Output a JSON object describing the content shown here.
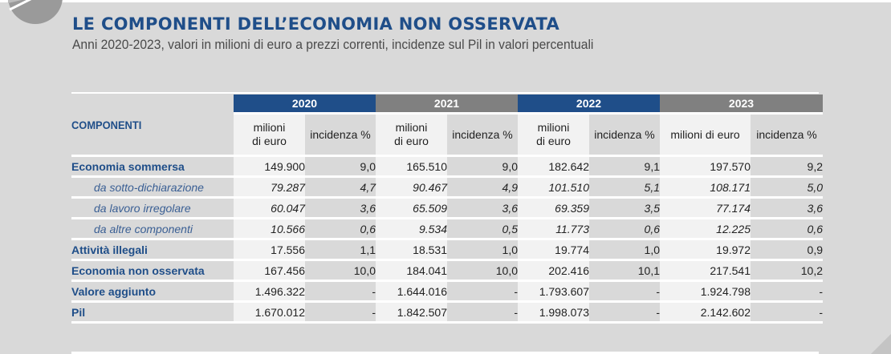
{
  "header": {
    "title": "LE COMPONENTI DELL’ECONOMIA NON OSSERVATA",
    "subtitle": "Anni 2020-2023, valori in milioni di euro a prezzi correnti, incidenze sul Pil in valori percentuali"
  },
  "colors": {
    "accent_blue": "#1f4e89",
    "header_grey": "#808080",
    "background": "#d9d9d9",
    "cell_light": "#f2f2f2"
  },
  "logo_icon": "pie-chart-icon",
  "table": {
    "components_header": "COMPONENTI",
    "years": [
      "2020",
      "2021",
      "2022",
      "2023"
    ],
    "subheaders": {
      "millions": [
        "milioni",
        "di euro"
      ],
      "millions_2023": "milioni di euro",
      "incidence": "incidenza %"
    },
    "rows": [
      {
        "label": "Economia sommersa",
        "style": "bold",
        "values": [
          "149.900",
          "9,0",
          "165.510",
          "9,0",
          "182.642",
          "9,1",
          "197.570",
          "9,2"
        ]
      },
      {
        "label": "da sotto-dichiarazione",
        "style": "italic",
        "values": [
          "79.287",
          "4,7",
          "90.467",
          "4,9",
          "101.510",
          "5,1",
          "108.171",
          "5,0"
        ]
      },
      {
        "label": "da lavoro irregolare",
        "style": "italic",
        "values": [
          "60.047",
          "3,6",
          "65.509",
          "3,6",
          "69.359",
          "3,5",
          "77.174",
          "3,6"
        ]
      },
      {
        "label": "da altre componenti",
        "style": "italic",
        "values": [
          "10.566",
          "0,6",
          "9.534",
          "0,5",
          "11.773",
          "0,6",
          "12.225",
          "0,6"
        ]
      },
      {
        "label": "Attività illegali",
        "style": "bold",
        "values": [
          "17.556",
          "1,1",
          "18.531",
          "1,0",
          "19.774",
          "1,0",
          "19.972",
          "0,9"
        ]
      },
      {
        "label": "Economia non osservata",
        "style": "bold",
        "values": [
          "167.456",
          "10,0",
          "184.041",
          "10,0",
          "202.416",
          "10,1",
          "217.541",
          "10,2"
        ]
      },
      {
        "label": "Valore aggiunto",
        "style": "bold",
        "values": [
          "1.496.322",
          "-",
          "1.644.016",
          "-",
          "1.793.607",
          "-",
          "1.924.798",
          "-"
        ]
      },
      {
        "label": "Pil",
        "style": "bold",
        "values": [
          "1.670.012",
          "-",
          "1.842.507",
          "-",
          "1.998.073",
          "-",
          "2.142.602",
          "-"
        ]
      }
    ]
  }
}
